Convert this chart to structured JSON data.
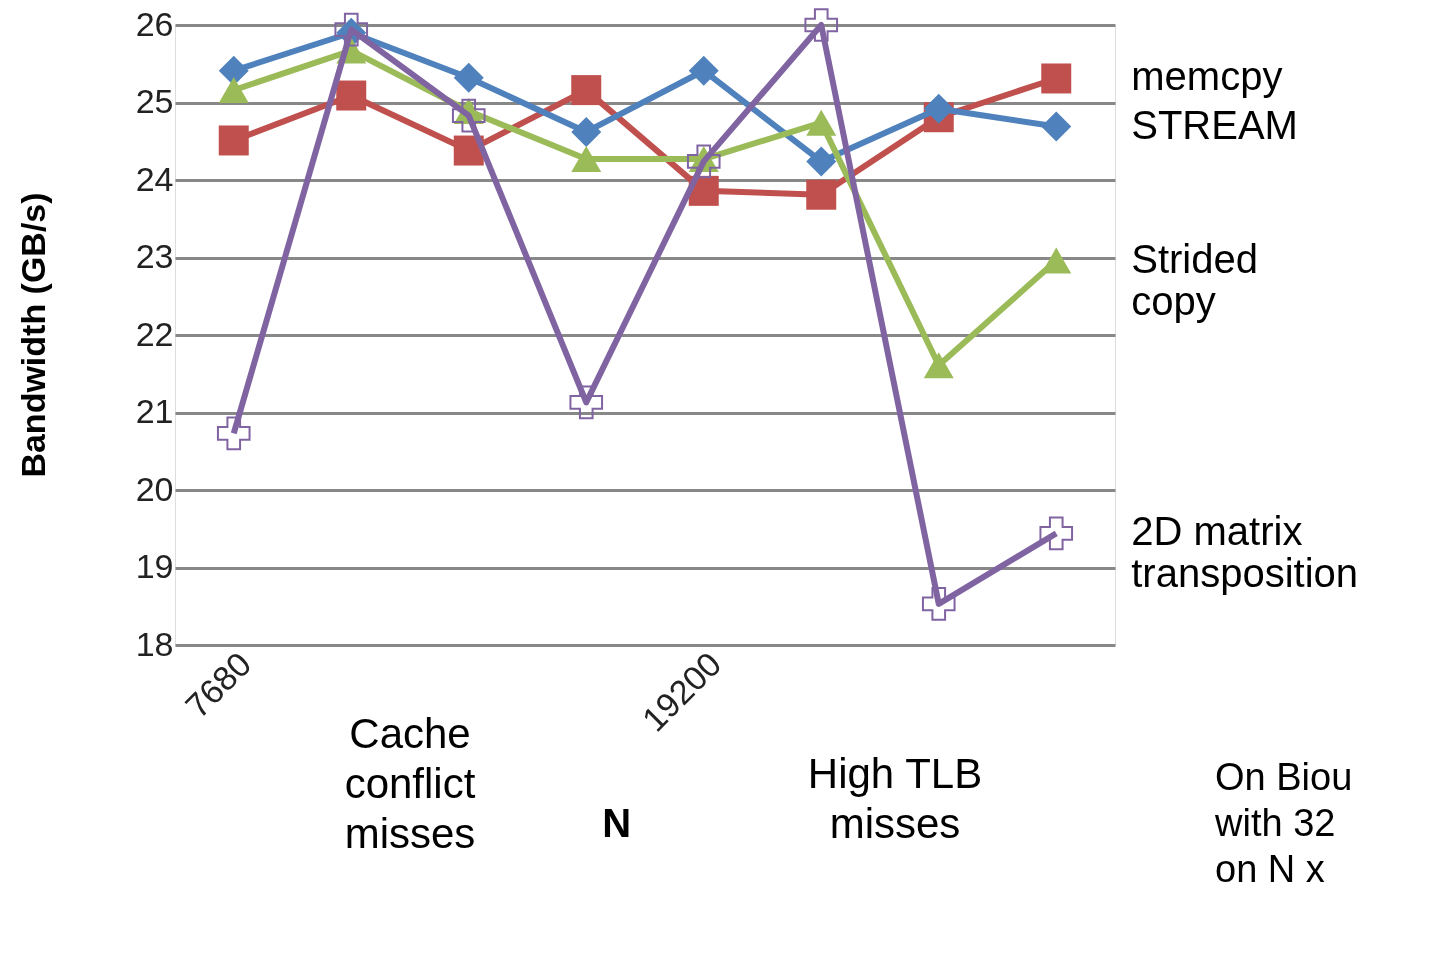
{
  "chart_data": {
    "type": "line",
    "xlabel": "N",
    "ylabel": "Bandwidth (GB/s)",
    "categories": [
      "7680",
      null,
      null,
      null,
      "19200",
      null,
      null,
      null
    ],
    "ylim": [
      18,
      26
    ],
    "yticks": [
      18,
      19,
      20,
      21,
      22,
      23,
      24,
      25,
      26
    ],
    "grid": "y",
    "line_style": "solid",
    "series": [
      {
        "name": "memcpy",
        "color": "#c0504d",
        "marker": "square",
        "values": [
          24.51,
          25.09,
          24.38,
          25.16,
          23.86,
          23.81,
          24.81,
          25.31
        ]
      },
      {
        "name": "STREAM",
        "color": "#4f81bd",
        "marker": "diamond",
        "values": [
          25.41,
          25.9,
          25.32,
          24.62,
          25.41,
          24.24,
          24.92,
          24.69
        ]
      },
      {
        "name": "Strided\ncopy",
        "color": "#9bbb59",
        "marker": "triangle",
        "values": [
          25.16,
          25.67,
          24.89,
          24.27,
          24.27,
          24.74,
          21.61,
          22.96
        ]
      },
      {
        "name": "2D  matrix\ntransposition",
        "color": "#8064a2",
        "marker": "cross",
        "values": [
          20.73,
          25.94,
          24.83,
          21.13,
          24.24,
          26.0,
          18.53,
          19.44
        ]
      }
    ],
    "annotations": [
      "Cache\nconflict\nmisses",
      "High TLB\nmisses",
      "On Biou\nwith 32\non N x"
    ]
  }
}
